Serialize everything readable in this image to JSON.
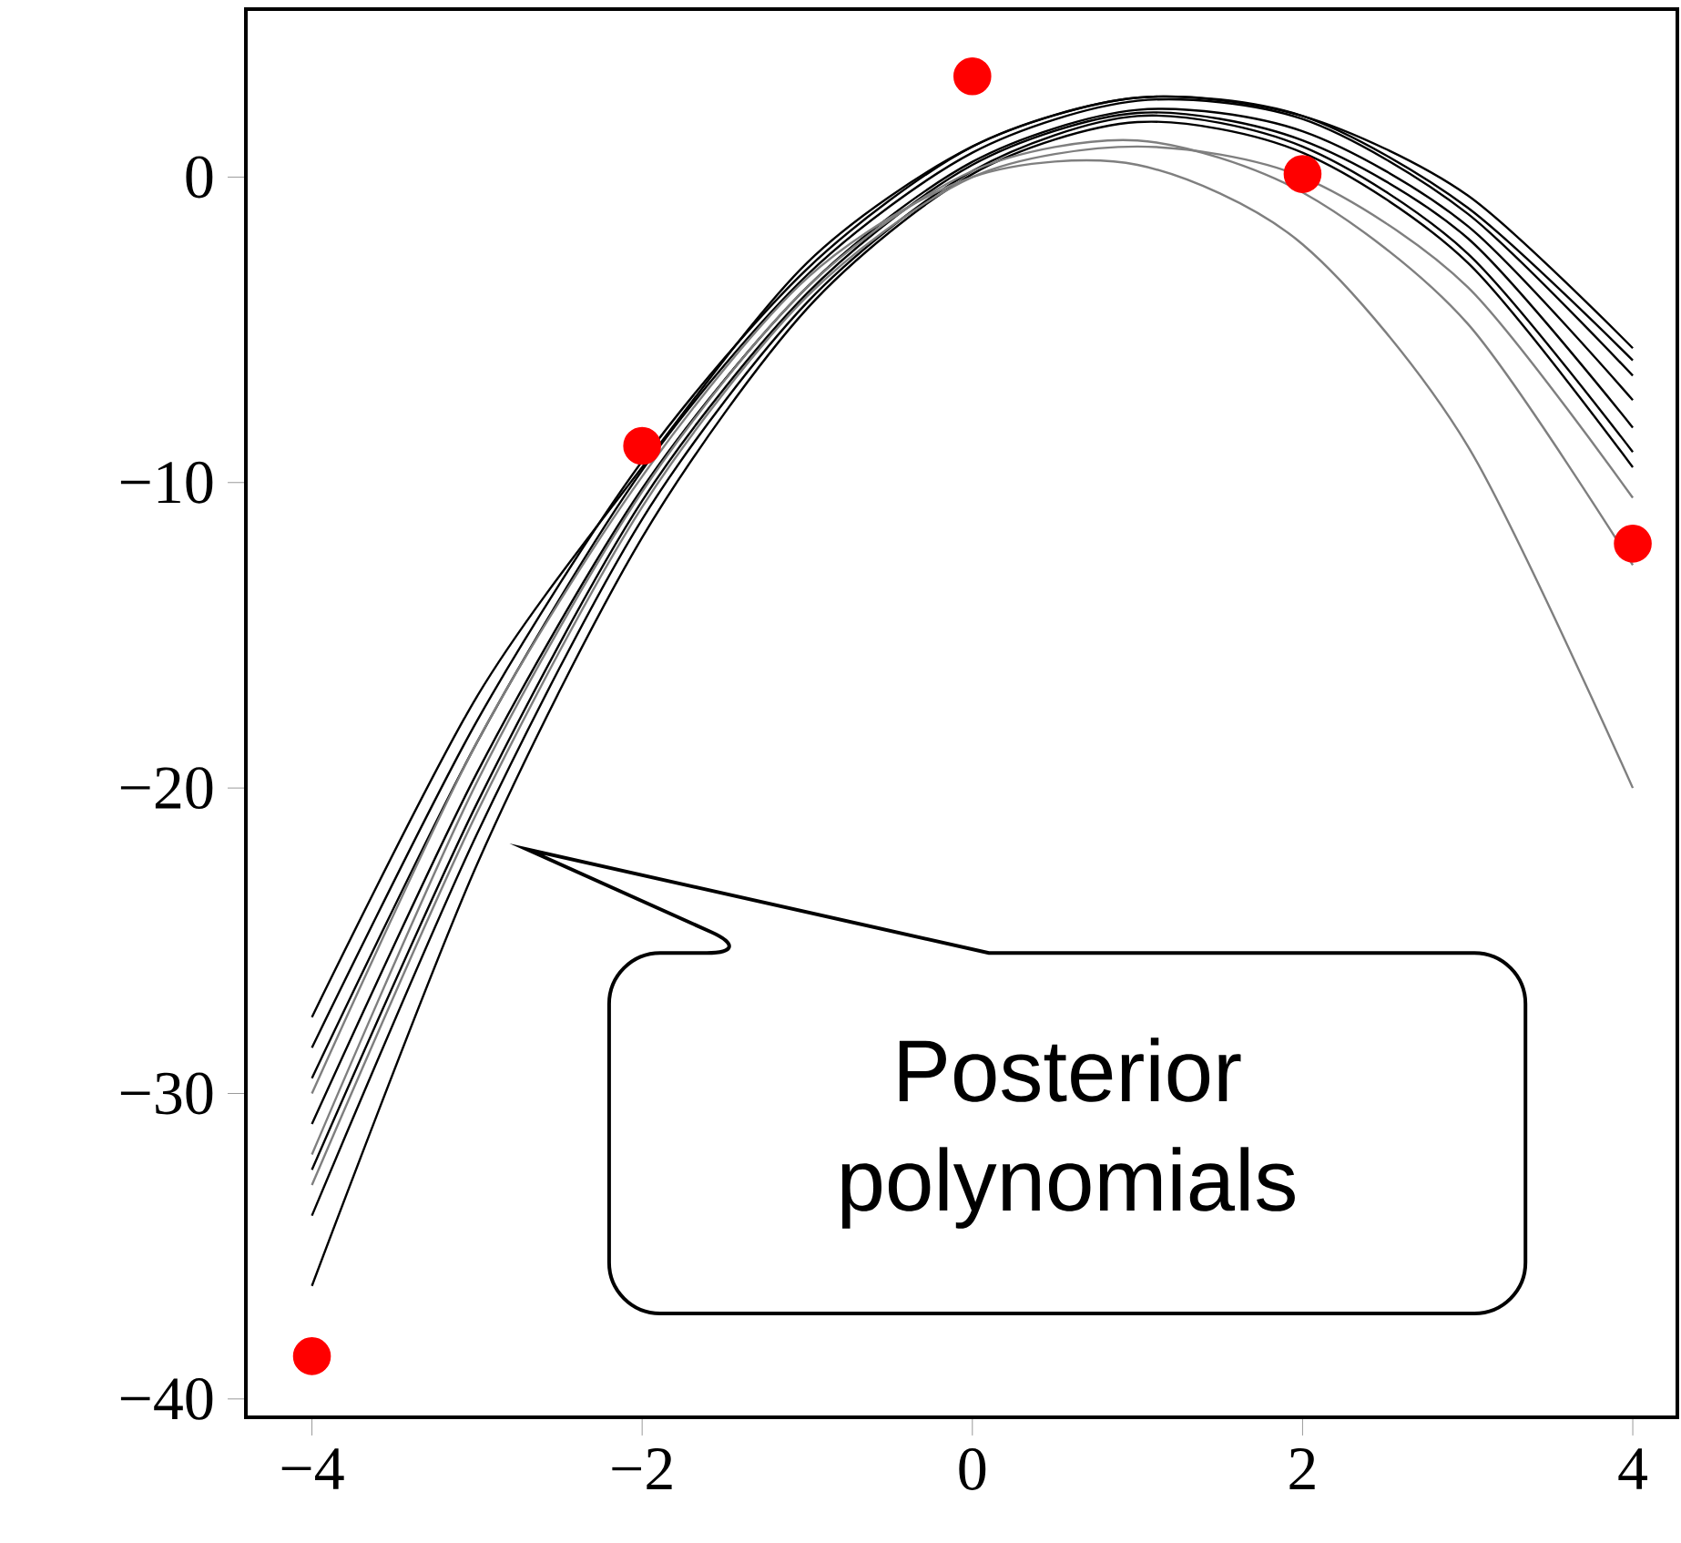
{
  "chart_data": {
    "type": "line",
    "xlim": [
      -4.4,
      4.27
    ],
    "ylim": [
      -40.6,
      5.5
    ],
    "xticks": [
      {
        "value": -4,
        "label": "−4"
      },
      {
        "value": -2,
        "label": "−2"
      },
      0,
      2,
      4
    ],
    "yticks": [
      {
        "value": -40,
        "label": "−40"
      },
      {
        "value": -30,
        "label": "−30"
      },
      {
        "value": -20,
        "label": "−20"
      },
      {
        "value": -10,
        "label": "−10"
      },
      0
    ],
    "annotations": [
      "Posterior polynomials"
    ],
    "series": [
      {
        "color": "#000000",
        "x": [
          -4,
          -3,
          -2,
          -1,
          0,
          1,
          2,
          3,
          4
        ],
        "values": [
          -31,
          -19.5,
          -10.2,
          -3.6,
          0.5,
          2.2,
          1.5,
          -1.6,
          -7.3
        ]
      },
      {
        "color": "#000000",
        "x": [
          -4,
          -3,
          -2,
          -1,
          0,
          1,
          2,
          3,
          4
        ],
        "values": [
          -27.5,
          -17,
          -9.5,
          -2.8,
          1.0,
          2.6,
          2.0,
          -1.0,
          -6.0
        ]
      },
      {
        "color": "#000000",
        "x": [
          -4,
          -3,
          -2,
          -1,
          0,
          1,
          2,
          3,
          4
        ],
        "values": [
          -34,
          -21.5,
          -11.2,
          -4.1,
          0.2,
          2.0,
          1.0,
          -2.5,
          -9.0
        ]
      },
      {
        "color": "#000000",
        "x": [
          -4,
          -3,
          -2,
          -1,
          0,
          1,
          2,
          3,
          4
        ],
        "values": [
          -36.3,
          -22.5,
          -11.8,
          -4.3,
          0.1,
          1.8,
          0.8,
          -2.8,
          -9.5
        ]
      },
      {
        "color": "#000000",
        "x": [
          -4,
          -3,
          -2,
          -1,
          0,
          1,
          2,
          3,
          4
        ],
        "values": [
          -29.5,
          -18.5,
          -9.6,
          -3.2,
          0.8,
          2.5,
          1.9,
          -1.2,
          -6.5
        ]
      },
      {
        "color": "#000000",
        "x": [
          -4,
          -3,
          -2,
          -1,
          0,
          1,
          2,
          3,
          4
        ],
        "values": [
          -32.5,
          -20.5,
          -10.6,
          -3.8,
          0.4,
          2.1,
          1.2,
          -2.0,
          -8.2
        ]
      },
      {
        "color": "#000000",
        "x": [
          -4,
          -3,
          -2,
          -1,
          0,
          1,
          2,
          3,
          4
        ],
        "values": [
          -28.5,
          -17.8,
          -9.3,
          -3.0,
          1.0,
          2.6,
          2.0,
          -0.6,
          -5.6
        ]
      },
      {
        "color": "#7f7f7f",
        "x": [
          -4,
          -3,
          -2,
          -1,
          0,
          1,
          2,
          3,
          4
        ],
        "values": [
          -30,
          -18.5,
          -9.8,
          -3.3,
          0,
          0.4,
          -2.2,
          -8.8,
          -20
        ]
      },
      {
        "color": "#7f7f7f",
        "x": [
          -4,
          -3,
          -2,
          -1,
          0,
          1,
          2,
          3,
          4
        ],
        "values": [
          -32,
          -19.8,
          -10.3,
          -3.6,
          0.2,
          1.2,
          -0.5,
          -4.8,
          -12.7
        ]
      },
      {
        "color": "#7f7f7f",
        "x": [
          -4,
          -3,
          -2,
          -1,
          0,
          1,
          2,
          3,
          4
        ],
        "values": [
          -33,
          -20.8,
          -10.8,
          -3.9,
          0.0,
          1.0,
          0.0,
          -3.6,
          -10.5
        ]
      },
      {
        "type": "scatter",
        "color": "#ff0000",
        "marker": "circle",
        "x": [
          -4,
          -2,
          0,
          2,
          4
        ],
        "values": [
          -38.6,
          -8.8,
          3.3,
          0.1,
          -12.0
        ]
      }
    ]
  }
}
